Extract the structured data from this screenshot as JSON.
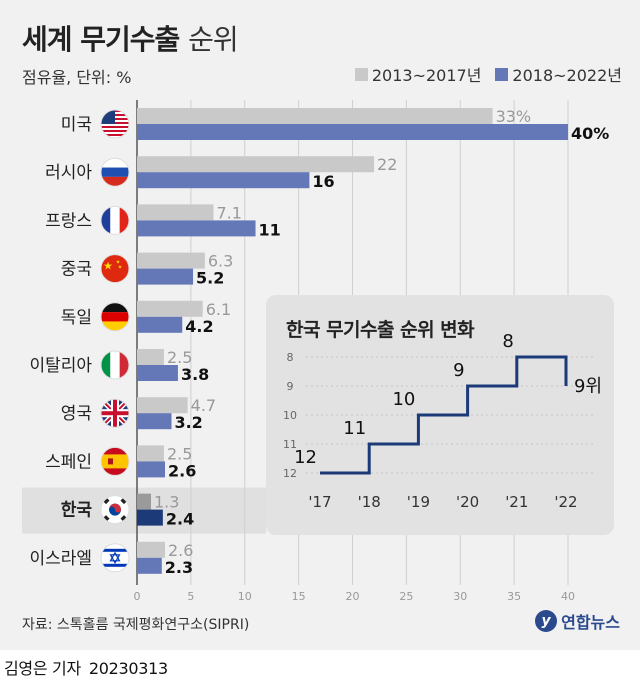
{
  "title": {
    "main": "세계 무기수출",
    "light": "순위"
  },
  "unit_label": "점유율, 단위: %",
  "legend": [
    {
      "label": "2013~2017년",
      "color": "#c9c9c9"
    },
    {
      "label": "2018~2022년",
      "color": "#6478b8"
    }
  ],
  "highlight_color": "#1d3a78",
  "highlight_light_color": "#9a9a9a",
  "chart_data": [
    {
      "type": "bar",
      "orientation": "horizontal",
      "categories": [
        "미국",
        "러시아",
        "프랑스",
        "중국",
        "독일",
        "이탈리아",
        "영국",
        "스페인",
        "한국",
        "이스라엘"
      ],
      "flags": [
        "us-flag-icon",
        "russia-flag-icon",
        "france-flag-icon",
        "china-flag-icon",
        "germany-flag-icon",
        "italy-flag-icon",
        "uk-flag-icon",
        "spain-flag-icon",
        "korea-flag-icon",
        "israel-flag-icon"
      ],
      "highlight": "한국",
      "series": [
        {
          "name": "2013~2017년",
          "values": [
            33,
            22,
            7.1,
            6.3,
            6.1,
            2.5,
            4.7,
            2.5,
            1.3,
            2.6
          ],
          "labels": [
            "33%",
            "22",
            "7.1",
            "6.3",
            "6.1",
            "2.5",
            "4.7",
            "2.5",
            "1.3",
            "2.6"
          ]
        },
        {
          "name": "2018~2022년",
          "values": [
            40,
            16,
            11,
            5.2,
            4.2,
            3.8,
            3.2,
            2.6,
            2.4,
            2.3
          ],
          "labels": [
            "40%",
            "16",
            "11",
            "5.2",
            "4.2",
            "3.8",
            "3.2",
            "2.6",
            "2.4",
            "2.3"
          ]
        }
      ],
      "xticks": [
        "0",
        "5",
        "10",
        "15",
        "20",
        "25",
        "30",
        "35",
        "40"
      ],
      "xlim": [
        0,
        40
      ],
      "grid": true
    },
    {
      "type": "line",
      "step": true,
      "title": "한국 무기수출 순위 변화",
      "x": [
        "'17",
        "'18",
        "'19",
        "'20",
        "'21",
        "'22"
      ],
      "y": [
        12,
        11,
        10,
        9,
        8,
        9
      ],
      "point_labels": [
        "12",
        "11",
        "10",
        "9",
        "8",
        "9위"
      ],
      "yticks": [
        "8",
        "9",
        "10",
        "11",
        "12"
      ],
      "ylim": [
        8,
        12
      ],
      "y_inverted": true
    }
  ],
  "source": "자료: 스톡홀름 국제평화연구소(SIPRI)",
  "logo": {
    "mark": "y",
    "text": "연합뉴스"
  },
  "credit": {
    "author": "김영은 기자",
    "date": "20230313"
  }
}
